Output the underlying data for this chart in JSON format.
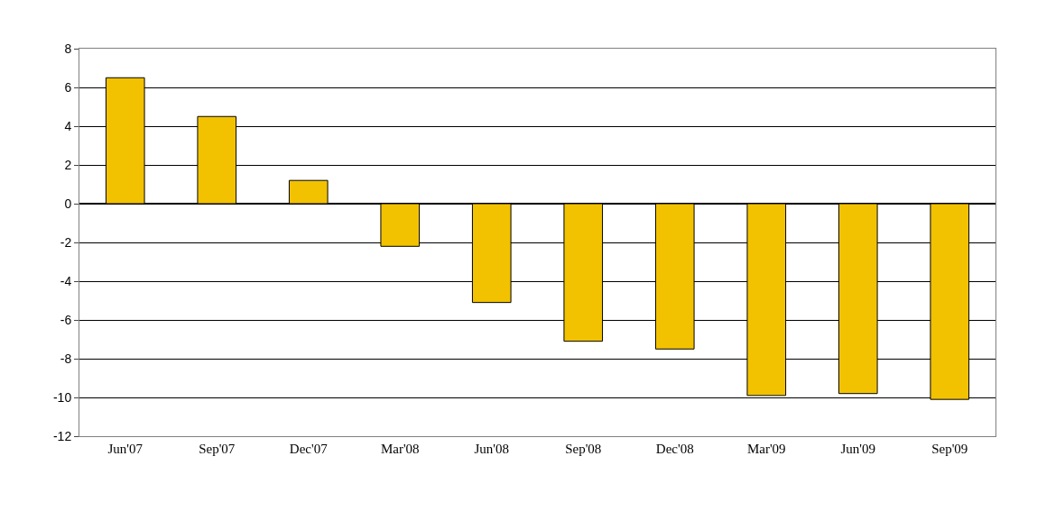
{
  "chart_data": {
    "type": "bar",
    "categories": [
      "Jun'07",
      "Sep'07",
      "Dec'07",
      "Mar'08",
      "Jun'08",
      "Sep'08",
      "Dec'08",
      "Mar'09",
      "Jun'09",
      "Sep'09"
    ],
    "values": [
      6.5,
      4.5,
      1.2,
      -2.2,
      -5.1,
      -7.1,
      -7.5,
      -9.9,
      -9.8,
      -10.1
    ],
    "color": "#f2c200",
    "ylim": [
      -12,
      8
    ],
    "yticks": [
      -12,
      -10,
      -8,
      -6,
      -4,
      -2,
      0,
      2,
      4,
      6,
      8
    ],
    "grid": "y"
  }
}
